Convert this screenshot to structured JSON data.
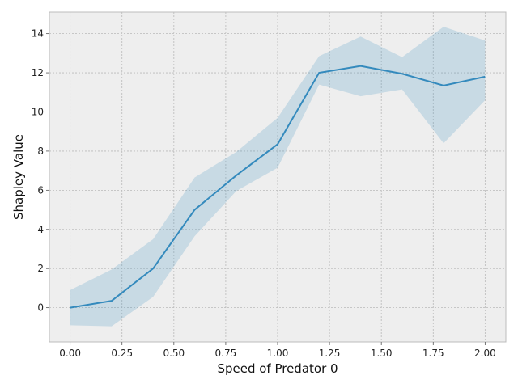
{
  "chart_data": {
    "type": "line",
    "xlabel": "Speed of Predator 0",
    "ylabel": "Shapley Value",
    "xlim": [
      -0.1,
      2.1
    ],
    "ylim": [
      -1.75,
      15.1
    ],
    "xticks": [
      0.0,
      0.25,
      0.5,
      0.75,
      1.0,
      1.25,
      1.5,
      1.75,
      2.0
    ],
    "xtick_labels": [
      "0.00",
      "0.25",
      "0.50",
      "0.75",
      "1.00",
      "1.25",
      "1.50",
      "1.75",
      "2.00"
    ],
    "yticks": [
      0,
      2,
      4,
      6,
      8,
      10,
      12,
      14
    ],
    "ytick_labels": [
      "0",
      "2",
      "4",
      "6",
      "8",
      "10",
      "12",
      "14"
    ],
    "grid": true,
    "series": [
      {
        "x": [
          0.0,
          0.2,
          0.4,
          0.6,
          0.8,
          1.0,
          1.2,
          1.4,
          1.6,
          1.8,
          2.0
        ],
        "y": [
          0.0,
          0.35,
          2.0,
          5.0,
          6.75,
          8.35,
          12.0,
          12.35,
          11.95,
          11.35,
          11.8
        ],
        "lower": [
          -0.9,
          -0.95,
          0.55,
          3.65,
          5.95,
          7.15,
          11.4,
          10.8,
          11.15,
          8.4,
          10.6
        ],
        "upper": [
          0.9,
          1.95,
          3.5,
          6.65,
          7.95,
          9.7,
          12.85,
          13.85,
          12.8,
          14.35,
          13.65
        ]
      }
    ],
    "colors": {
      "line": "#348abd",
      "band": "#348abd",
      "plot_background": "#eeeeee",
      "axes_edge": "#bcbcbc",
      "grid": "#b9b9b9"
    }
  }
}
